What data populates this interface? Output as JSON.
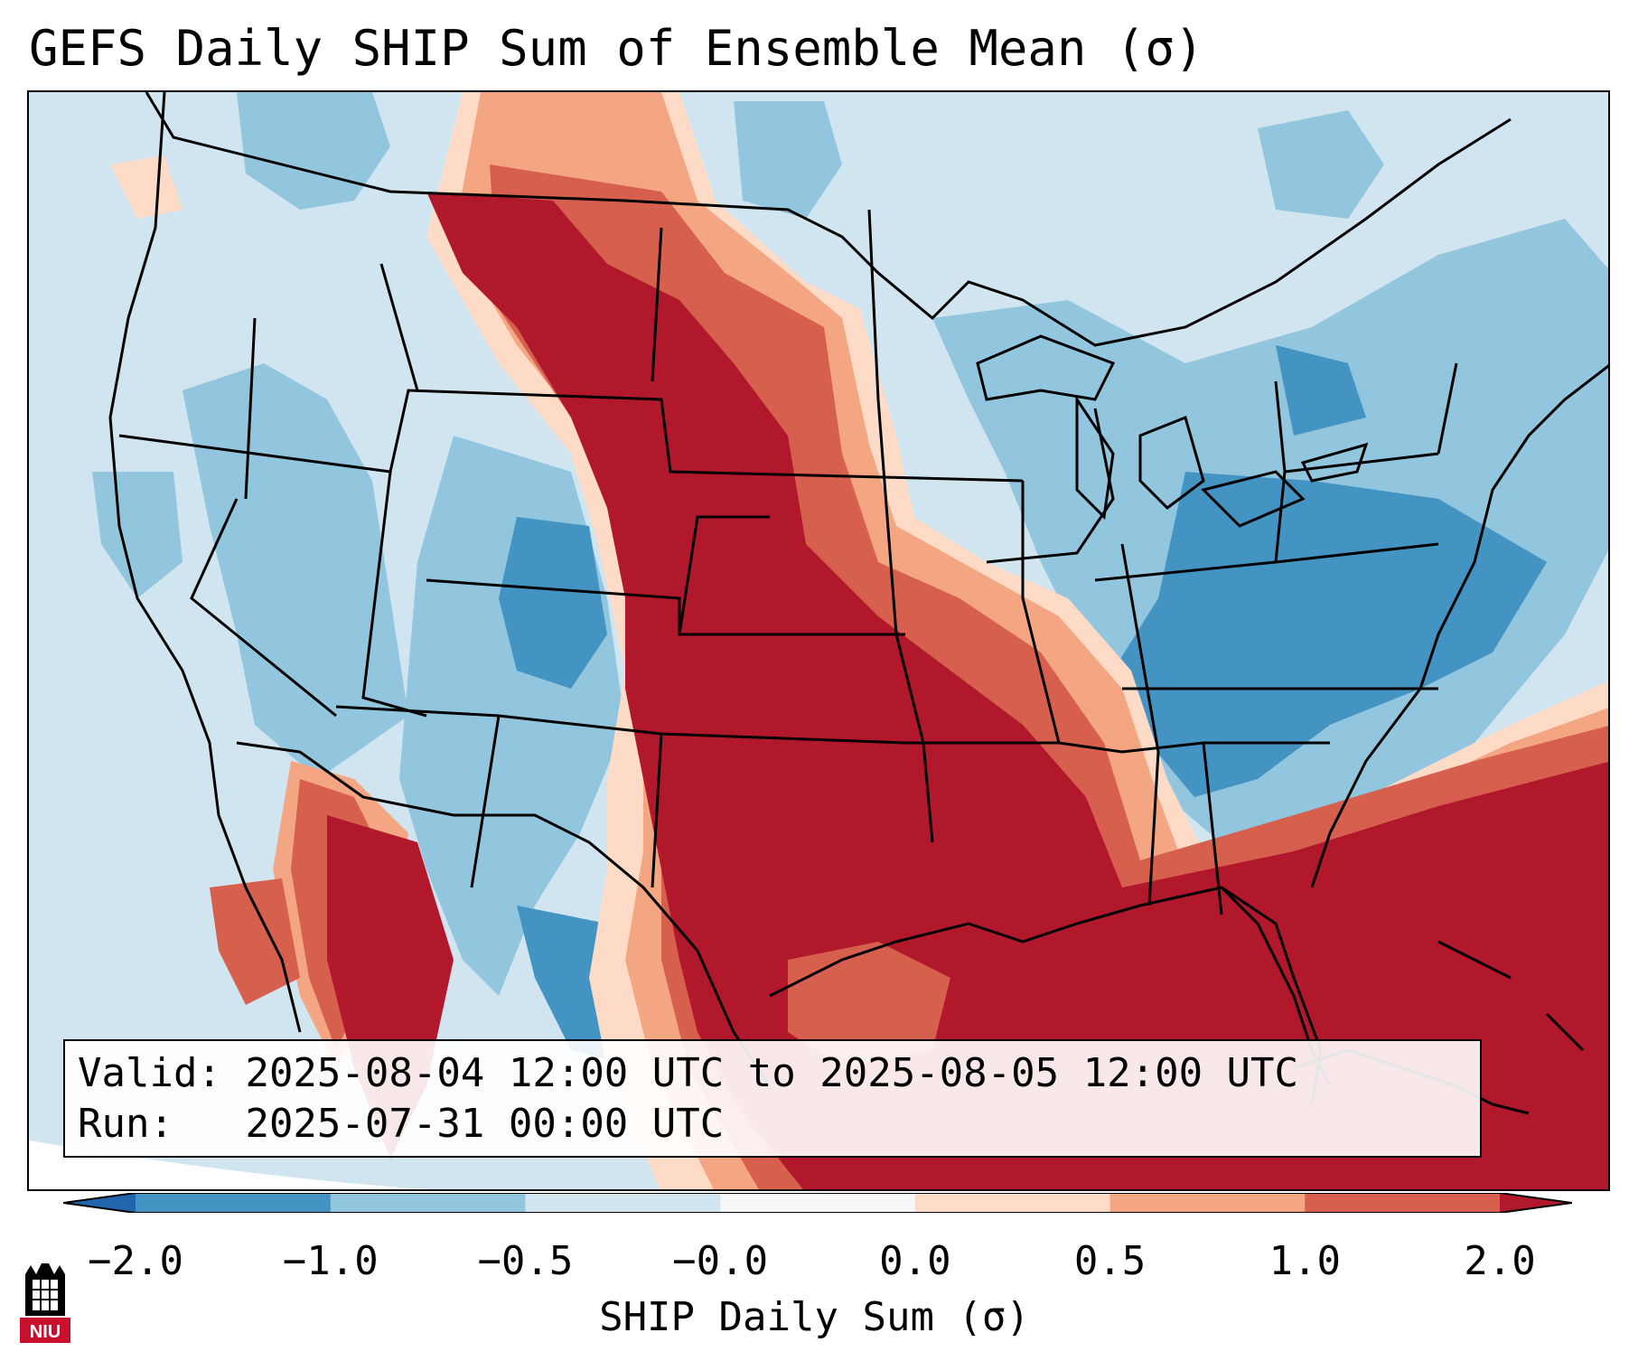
{
  "title": "GEFS Daily SHIP Sum of Ensemble Mean (σ)",
  "info": {
    "valid_label": "Valid:",
    "valid_value": "2025-08-04 12:00 UTC to 2025-08-05 12:00 UTC",
    "run_label": "Run:",
    "run_value": "2025-07-31 00:00 UTC"
  },
  "colorbar": {
    "label": "SHIP Daily Sum (σ)",
    "ticks": [
      "−2.0",
      "−1.0",
      "−0.5",
      "−0.0",
      "0.0",
      "0.5",
      "1.0",
      "2.0"
    ],
    "colors": [
      "#4393c3",
      "#92c5de",
      "#d1e5f0",
      "#f7f7f7",
      "#fddbc7",
      "#f4a582",
      "#d6604d"
    ],
    "under_color": "#2166ac",
    "over_color": "#b2182b"
  },
  "legend_colors": {
    "strong_negative": "#4393c3",
    "negative": "#92c5de",
    "weak_negative": "#d1e5f0",
    "weak_positive": "#fddbc7",
    "positive": "#f4a582",
    "strong_positive": "#d6604d",
    "extreme_positive": "#b2182b"
  },
  "logo": {
    "text": "NIU",
    "color": "#c8102e"
  }
}
